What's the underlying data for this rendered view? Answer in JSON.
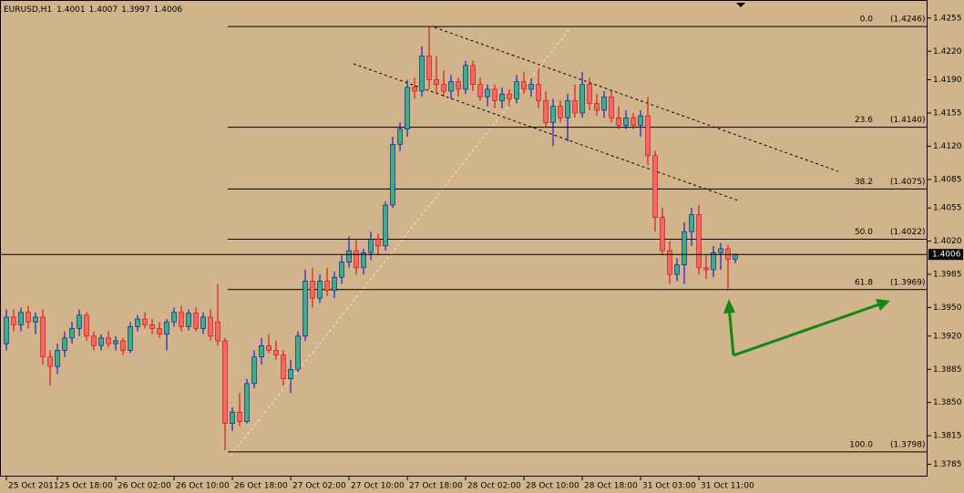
{
  "chart_data": {
    "type": "candlestick",
    "symbol": "EURUSD,H1",
    "ohlc": [
      1.4001,
      1.4007,
      1.3997,
      1.4006
    ],
    "bull_color": "#3cb371",
    "bull_outline": "#0000cd",
    "bear_color": "#f06a6a",
    "bear_outline": "#d80000",
    "categories": [
      "25 Oct 2011",
      null,
      null,
      null,
      null,
      null,
      null,
      "25 Oct 18:00",
      null,
      null,
      null,
      null,
      null,
      null,
      null,
      "26 Oct 02:00",
      null,
      null,
      null,
      null,
      null,
      null,
      null,
      "26 Oct 10:00",
      null,
      null,
      null,
      null,
      null,
      null,
      null,
      "26 Oct 18:00",
      null,
      null,
      null,
      null,
      null,
      null,
      null,
      "27 Oct 02:00",
      null,
      null,
      null,
      null,
      null,
      null,
      null,
      "27 Oct 10:00",
      null,
      null,
      null,
      null,
      null,
      null,
      null,
      "27 Oct 18:00",
      null,
      null,
      null,
      null,
      null,
      null,
      null,
      "28 Oct 02:00",
      null,
      null,
      null,
      null,
      null,
      null,
      null,
      "28 Oct 10:00",
      null,
      null,
      null,
      null,
      null,
      null,
      null,
      "28 Oct 18:00",
      null,
      null,
      null,
      null,
      null,
      null,
      null,
      "31 Oct 03:00",
      null,
      null,
      null,
      null,
      null,
      null,
      null,
      "31 Oct 11:00",
      null,
      null,
      null,
      null,
      null
    ],
    "open": [
      1.3912,
      1.394,
      1.3932,
      1.3945,
      1.3935,
      1.394,
      1.3898,
      1.3888,
      1.3905,
      1.3918,
      1.3928,
      1.3942,
      1.392,
      1.391,
      1.3918,
      1.3912,
      1.3915,
      1.3905,
      1.393,
      1.3938,
      1.3932,
      1.3928,
      1.3922,
      1.3935,
      1.3945,
      1.393,
      1.3944,
      1.3928,
      1.394,
      1.3935,
      1.3915,
      1.3828,
      1.384,
      1.383,
      1.387,
      1.3898,
      1.391,
      1.3905,
      1.39,
      1.3875,
      1.3885,
      1.392,
      1.3978,
      1.396,
      1.3978,
      1.3968,
      1.3982,
      1.3998,
      1.401,
      1.3992,
      1.4008,
      1.4022,
      1.4015,
      1.4058,
      1.4122,
      1.4138,
      1.4182,
      1.4178,
      1.4215,
      1.419,
      1.4185,
      1.4178,
      1.4188,
      1.418,
      1.4205,
      1.4185,
      1.4172,
      1.418,
      1.4168,
      1.4175,
      1.417,
      1.4188,
      1.418,
      1.4185,
      1.4168,
      1.4145,
      1.4162,
      1.415,
      1.4168,
      1.4155,
      1.4185,
      1.4165,
      1.4158,
      1.4172,
      1.415,
      1.4142,
      1.415,
      1.4142,
      1.4152,
      1.411,
      1.4045,
      1.401,
      1.3985,
      1.3995,
      1.403,
      1.4048,
      1.3992,
      1.399,
      1.4008,
      1.4012,
      1.4001
    ],
    "high": [
      1.3948,
      1.3948,
      1.395,
      1.3952,
      1.3945,
      1.3948,
      1.3905,
      1.3912,
      1.3925,
      1.3935,
      1.3948,
      1.3945,
      1.3925,
      1.3922,
      1.3925,
      1.392,
      1.3918,
      1.3935,
      1.3942,
      1.3945,
      1.3938,
      1.3935,
      1.3938,
      1.395,
      1.3952,
      1.3948,
      1.395,
      1.3945,
      1.3948,
      1.3975,
      1.3918,
      1.3845,
      1.386,
      1.3875,
      1.3905,
      1.3918,
      1.3922,
      1.3915,
      1.3905,
      1.3895,
      1.3925,
      1.399,
      1.3992,
      1.3985,
      1.3992,
      1.3988,
      1.4005,
      1.4025,
      1.4022,
      1.4012,
      1.403,
      1.4028,
      1.4062,
      1.413,
      1.4145,
      1.419,
      1.4192,
      1.4225,
      1.4246,
      1.4215,
      1.42,
      1.4195,
      1.4192,
      1.421,
      1.421,
      1.4192,
      1.4185,
      1.4185,
      1.4182,
      1.418,
      1.4195,
      1.4198,
      1.4192,
      1.4202,
      1.4178,
      1.417,
      1.4168,
      1.4175,
      1.4185,
      1.4198,
      1.4192,
      1.4175,
      1.4178,
      1.4178,
      1.4162,
      1.4158,
      1.4155,
      1.4158,
      1.4172,
      1.4115,
      1.4055,
      1.402,
      1.4002,
      1.404,
      1.4055,
      1.4058,
      1.4005,
      1.4015,
      1.4018,
      1.4016,
      1.4007
    ],
    "low": [
      1.3905,
      1.3925,
      1.3925,
      1.3928,
      1.3922,
      1.389,
      1.3868,
      1.388,
      1.3898,
      1.3912,
      1.392,
      1.3915,
      1.3905,
      1.3905,
      1.3908,
      1.3905,
      1.39,
      1.3902,
      1.3925,
      1.3928,
      1.3922,
      1.3918,
      1.3905,
      1.393,
      1.3925,
      1.3926,
      1.3925,
      1.3922,
      1.3915,
      1.391,
      1.38,
      1.382,
      1.3825,
      1.3828,
      1.3865,
      1.389,
      1.3902,
      1.3895,
      1.3868,
      1.386,
      1.3882,
      1.3915,
      1.395,
      1.3955,
      1.3962,
      1.396,
      1.3975,
      1.3992,
      1.3985,
      1.3985,
      1.4,
      1.4005,
      1.401,
      1.4055,
      1.4115,
      1.413,
      1.417,
      1.4172,
      1.418,
      1.4175,
      1.4172,
      1.417,
      1.4172,
      1.4175,
      1.4178,
      1.4168,
      1.4162,
      1.416,
      1.416,
      1.4162,
      1.4165,
      1.4175,
      1.4172,
      1.416,
      1.414,
      1.412,
      1.4145,
      1.4125,
      1.415,
      1.415,
      1.4158,
      1.4152,
      1.415,
      1.4145,
      1.4138,
      1.4138,
      1.4138,
      1.413,
      1.41,
      1.403,
      1.4005,
      1.3975,
      1.3978,
      1.3975,
      1.4015,
      1.3985,
      1.398,
      1.3982,
      1.399,
      1.3969,
      1.3997
    ],
    "close": [
      1.394,
      1.3932,
      1.3945,
      1.3935,
      1.394,
      1.3898,
      1.3888,
      1.3905,
      1.3918,
      1.3928,
      1.3942,
      1.392,
      1.391,
      1.3918,
      1.3912,
      1.3915,
      1.3905,
      1.393,
      1.3938,
      1.3932,
      1.3928,
      1.3922,
      1.3935,
      1.3945,
      1.393,
      1.3944,
      1.3928,
      1.394,
      1.392,
      1.3915,
      1.3828,
      1.384,
      1.383,
      1.387,
      1.3898,
      1.391,
      1.3905,
      1.39,
      1.3875,
      1.3885,
      1.392,
      1.3978,
      1.396,
      1.3978,
      1.3968,
      1.3982,
      1.3998,
      1.401,
      1.3992,
      1.4008,
      1.4022,
      1.4015,
      1.4058,
      1.4122,
      1.4138,
      1.4182,
      1.4178,
      1.4215,
      1.419,
      1.4185,
      1.4178,
      1.4188,
      1.418,
      1.4205,
      1.4185,
      1.4172,
      1.418,
      1.4168,
      1.4175,
      1.417,
      1.4188,
      1.418,
      1.4185,
      1.4168,
      1.4145,
      1.4162,
      1.415,
      1.4168,
      1.4155,
      1.4185,
      1.4165,
      1.4158,
      1.4172,
      1.415,
      1.4142,
      1.415,
      1.4142,
      1.4152,
      1.411,
      1.4045,
      1.401,
      1.3985,
      1.3995,
      1.403,
      1.4048,
      1.3992,
      1.399,
      1.4008,
      1.4012,
      1.4001,
      1.4006
    ],
    "ylim": [
      1.3772,
      1.4274
    ],
    "yticks": [
      1.4255,
      {
        "value": 1.422,
        "label": "1.4220"
      },
      {
        "value": 1.419,
        "label": "1.4190"
      },
      1.4155,
      {
        "value": 1.412,
        "label": "1.4120"
      },
      1.4085,
      1.4055,
      {
        "value": 1.402,
        "label": "1.4020"
      },
      1.3985,
      {
        "value": 1.395,
        "label": "1.3950"
      },
      {
        "value": 1.392,
        "label": "1.3920"
      },
      1.3885,
      {
        "value": 1.385,
        "label": "1.3850"
      },
      1.3815,
      1.3785
    ],
    "fib_levels": [
      {
        "value": 1.4246,
        "level": "0.0",
        "label": "(1.4246)"
      },
      {
        "value": 1.414,
        "level": "23.6",
        "label": "(1.4140)"
      },
      {
        "value": 1.4075,
        "level": "38.2",
        "label": "(1.4075)"
      },
      {
        "value": 1.4022,
        "level": "50.0",
        "label": "(1.4022)"
      },
      {
        "value": 1.3969,
        "level": "61.8",
        "label": "(1.3969)"
      },
      {
        "value": 1.3798,
        "level": "100.0",
        "label": "(1.3798)"
      }
    ],
    "bid_line": 1.4006
  }
}
